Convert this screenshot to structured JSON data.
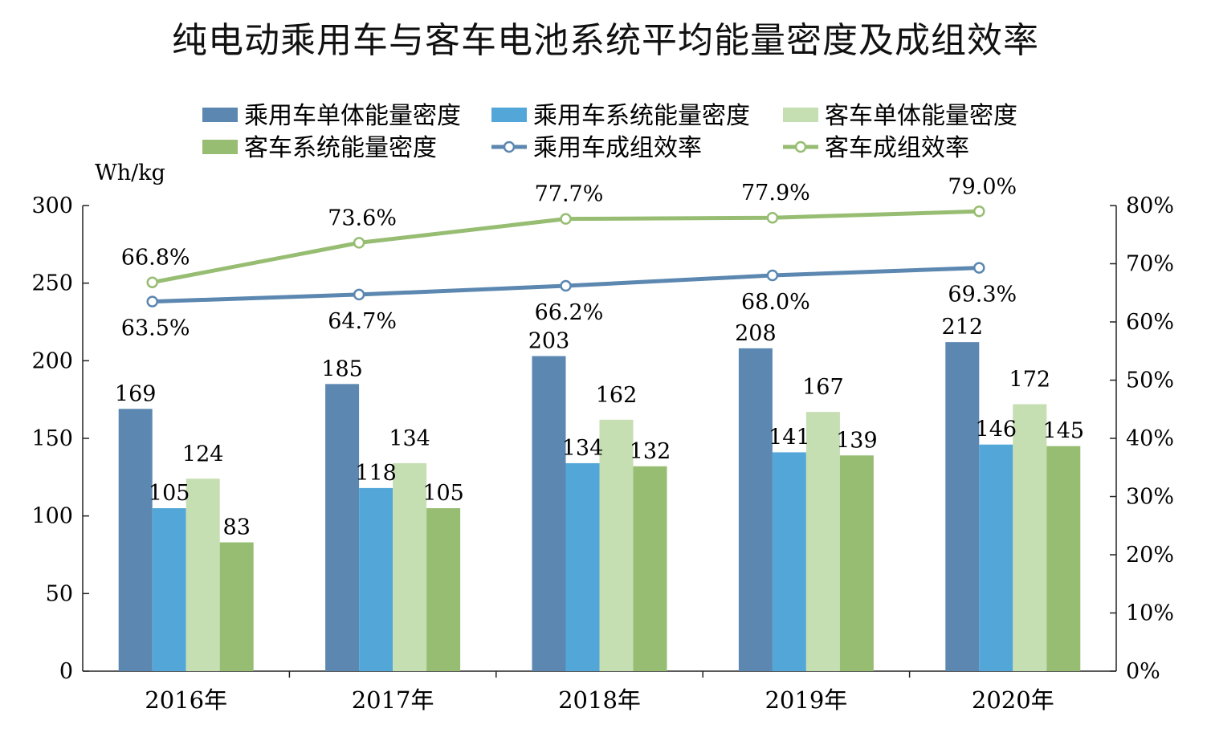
{
  "chart_data": {
    "type": "bar",
    "title": "纯电动乘用车与客车电池系统平均能量密度及成组效率",
    "y_unit_label": "Wh/kg",
    "categories": [
      "2016年",
      "2017年",
      "2018年",
      "2019年",
      "2020年"
    ],
    "ylim": [
      0,
      300
    ],
    "y_ticks": [
      "0",
      "50",
      "100",
      "150",
      "200",
      "250",
      "300"
    ],
    "y2lim": [
      0,
      80
    ],
    "y2_ticks": [
      "0%",
      "10%",
      "20%",
      "30%",
      "40%",
      "50%",
      "60%",
      "70%",
      "80%"
    ],
    "grid": false,
    "legend_position": "top",
    "series": [
      {
        "name": "乘用车单体能量密度",
        "kind": "bar",
        "axis": "left",
        "color": "#5b87b0",
        "values": [
          169,
          185,
          203,
          208,
          212
        ],
        "labels": [
          "169",
          "185",
          "203",
          "208",
          "212"
        ]
      },
      {
        "name": "乘用车系统能量密度",
        "kind": "bar",
        "axis": "left",
        "color": "#53a7d8",
        "values": [
          105,
          118,
          134,
          141,
          146
        ],
        "labels": [
          "105",
          "118",
          "134",
          "141",
          "146"
        ]
      },
      {
        "name": "客车单体能量密度",
        "kind": "bar",
        "axis": "left",
        "color": "#c5deb2",
        "values": [
          124,
          134,
          162,
          167,
          172
        ],
        "labels": [
          "124",
          "134",
          "162",
          "167",
          "172"
        ]
      },
      {
        "name": "客车系统能量密度",
        "kind": "bar",
        "axis": "left",
        "color": "#97bd72",
        "values": [
          83,
          105,
          132,
          139,
          145
        ],
        "labels": [
          "83",
          "105",
          "132",
          "139",
          "145"
        ]
      },
      {
        "name": "乘用车成组效率",
        "kind": "line",
        "axis": "right",
        "color": "#5b87b0",
        "values": [
          63.5,
          64.7,
          66.2,
          68.0,
          69.3
        ],
        "labels": [
          "63.5%",
          "64.7%",
          "66.2%",
          "68.0%",
          "69.3%"
        ]
      },
      {
        "name": "客车成组效率",
        "kind": "line",
        "axis": "right",
        "color": "#97bd72",
        "values": [
          66.8,
          73.6,
          77.7,
          77.9,
          79.0
        ],
        "labels": [
          "66.8%",
          "73.6%",
          "77.7%",
          "77.9%",
          "79.0%"
        ]
      }
    ]
  }
}
